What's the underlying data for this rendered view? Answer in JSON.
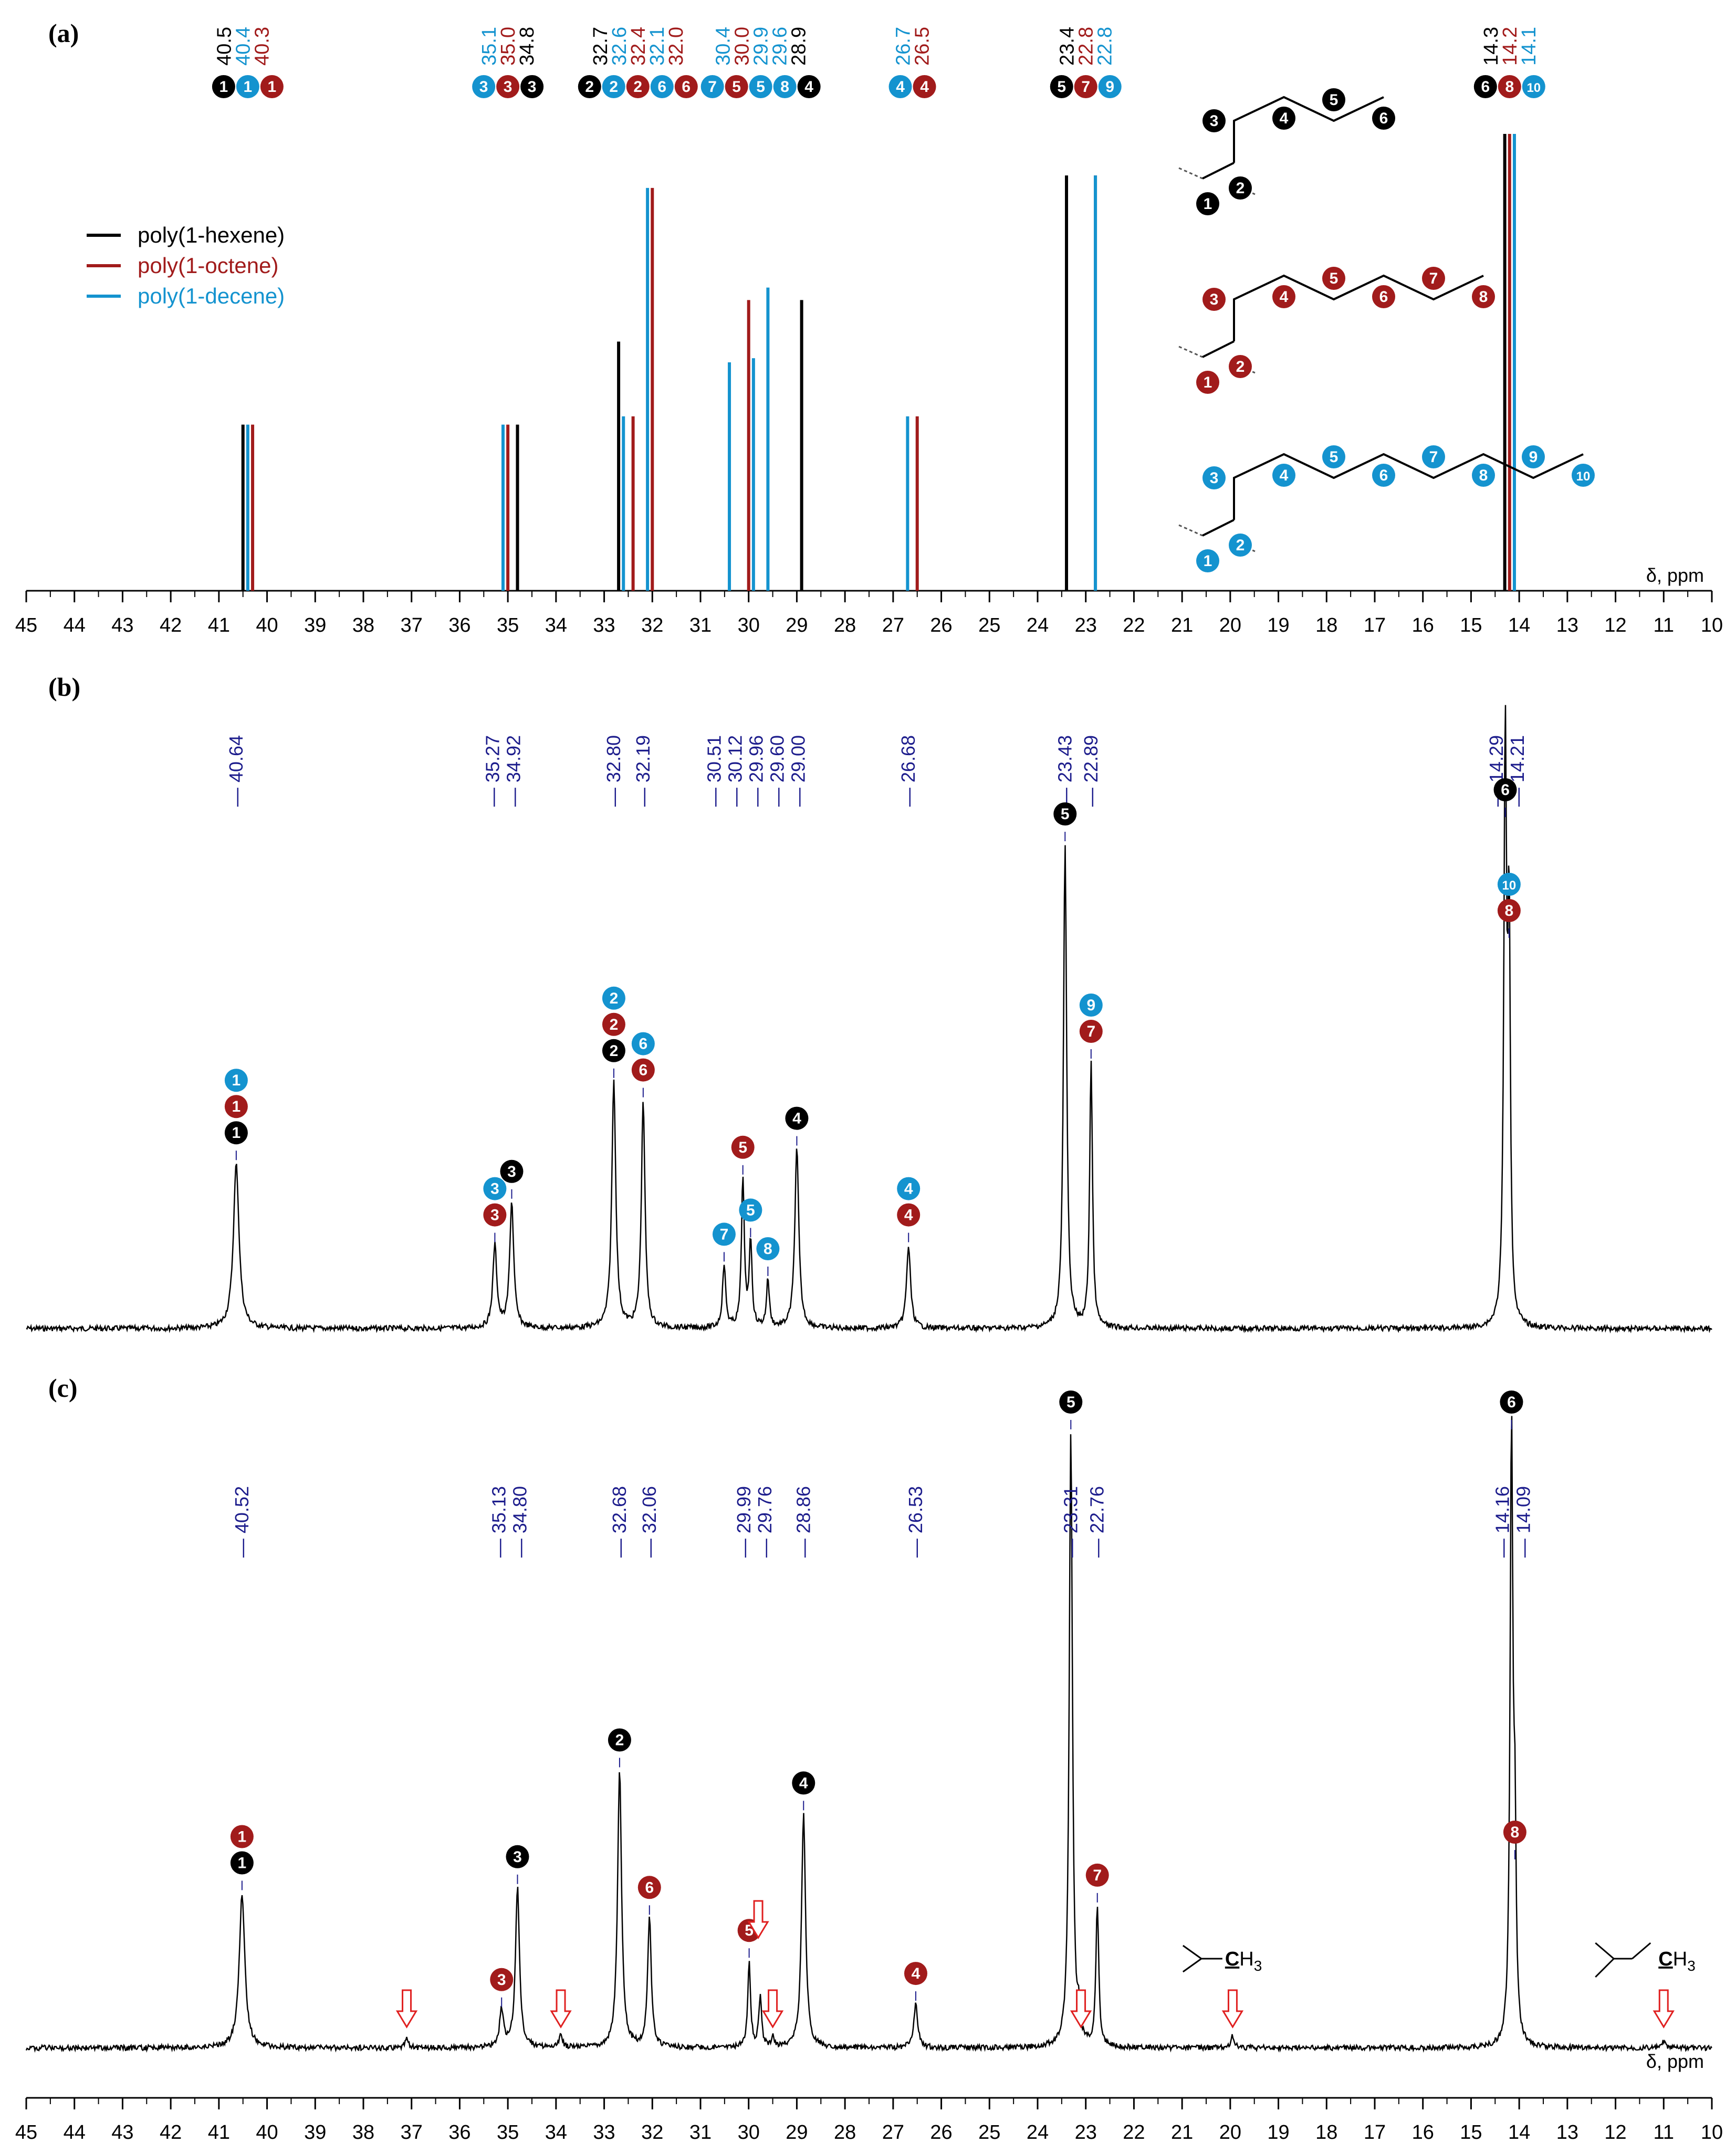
{
  "colors": {
    "hexene": "#000000",
    "octene": "#a11b1b",
    "decene": "#1493cf",
    "peak_label": "#1c1c8c",
    "arrow": "#e02020"
  },
  "axis": {
    "xlim": [
      45,
      10
    ],
    "ticks": [
      45,
      44,
      43,
      42,
      41,
      40,
      39,
      38,
      37,
      36,
      35,
      34,
      33,
      32,
      31,
      30,
      29,
      28,
      27,
      26,
      25,
      24,
      23,
      22,
      21,
      20,
      19,
      18,
      17,
      16,
      15,
      14,
      13,
      12,
      11,
      10
    ],
    "unit_label": "δ, ppm",
    "reversed": true
  },
  "panels": {
    "a": {
      "label": "(a)"
    },
    "b": {
      "label": "(b)"
    },
    "c": {
      "label": "(c)"
    }
  },
  "legend": [
    {
      "name": "poly(1-hexene)",
      "color_key": "hexene"
    },
    {
      "name": "poly(1-octene)",
      "color_key": "octene"
    },
    {
      "name": "poly(1-decene)",
      "color_key": "decene"
    }
  ],
  "chart_data": [
    {
      "type": "bar",
      "panel": "a",
      "xlabel": "δ, ppm",
      "xlim": [
        45,
        10
      ],
      "series": [
        {
          "name": "poly(1-hexene)",
          "color_key": "hexene",
          "x": [
            40.5,
            34.8,
            32.7,
            28.9,
            23.4,
            14.3
          ],
          "y": [
            0.4,
            0.4,
            0.6,
            0.7,
            1.0,
            1.1
          ],
          "carbons": [
            [
              "1"
            ],
            [
              "3"
            ],
            [
              "2"
            ],
            [
              "4"
            ],
            [
              "5"
            ],
            [
              "6"
            ]
          ]
        },
        {
          "name": "poly(1-octene)",
          "color_key": "octene",
          "x": [
            40.3,
            35.0,
            32.4,
            32.0,
            30.0,
            26.5,
            22.8,
            14.2
          ],
          "y": [
            0.4,
            0.4,
            0.42,
            0.97,
            0.7,
            0.42,
            1.0,
            1.1
          ],
          "carbons": [
            [
              "1"
            ],
            [
              "3"
            ],
            [
              "2"
            ],
            [
              "6"
            ],
            [
              "5"
            ],
            [
              "4"
            ],
            [
              "7"
            ],
            [
              "8"
            ]
          ]
        },
        {
          "name": "poly(1-decene)",
          "color_key": "decene",
          "x": [
            40.4,
            35.1,
            32.6,
            32.1,
            30.4,
            29.9,
            29.6,
            26.7,
            22.8,
            14.1
          ],
          "y": [
            0.4,
            0.4,
            0.42,
            0.97,
            0.55,
            0.56,
            0.73,
            0.42,
            1.0,
            1.1
          ],
          "carbons": [
            [
              "1"
            ],
            [
              "3"
            ],
            [
              "2"
            ],
            [
              "6"
            ],
            [
              "7"
            ],
            [
              "5"
            ],
            [
              "8"
            ],
            [
              "4"
            ],
            [
              "9"
            ],
            [
              "10"
            ]
          ]
        }
      ],
      "shift_labels": [
        {
          "x": 40.5,
          "items": [
            {
              "t": "40.5",
              "c": "hexene"
            },
            {
              "t": "40.4",
              "c": "decene"
            },
            {
              "t": "40.3",
              "c": "octene"
            }
          ]
        },
        {
          "x": 35.0,
          "items": [
            {
              "t": "35.1",
              "c": "decene"
            },
            {
              "t": "35.0",
              "c": "octene"
            },
            {
              "t": "34.8",
              "c": "hexene"
            }
          ]
        },
        {
          "x": 32.3,
          "items": [
            {
              "t": "32.7",
              "c": "hexene"
            },
            {
              "t": "32.6",
              "c": "decene"
            },
            {
              "t": "32.4",
              "c": "octene"
            },
            {
              "t": "32.1",
              "c": "decene"
            },
            {
              "t": "32.0",
              "c": "octene"
            }
          ]
        },
        {
          "x": 29.75,
          "items": [
            {
              "t": "30.4",
              "c": "decene"
            },
            {
              "t": "30.0",
              "c": "octene"
            },
            {
              "t": "29.9",
              "c": "decene"
            },
            {
              "t": "29.6",
              "c": "decene"
            },
            {
              "t": "28.9",
              "c": "hexene"
            }
          ]
        },
        {
          "x": 26.6,
          "items": [
            {
              "t": "26.7",
              "c": "decene"
            },
            {
              "t": "26.5",
              "c": "octene"
            }
          ]
        },
        {
          "x": 23.0,
          "items": [
            {
              "t": "23.4",
              "c": "hexene"
            },
            {
              "t": "22.8",
              "c": "octene"
            },
            {
              "t": "22.8",
              "c": "decene"
            }
          ]
        },
        {
          "x": 14.2,
          "items": [
            {
              "t": "14.3",
              "c": "hexene"
            },
            {
              "t": "14.2",
              "c": "octene"
            },
            {
              "t": "14.1",
              "c": "decene"
            }
          ]
        }
      ],
      "marker_groups": [
        {
          "x": 40.4,
          "items": [
            {
              "n": "1",
              "c": "hexene"
            },
            {
              "n": "1",
              "c": "decene"
            },
            {
              "n": "1",
              "c": "octene"
            }
          ]
        },
        {
          "x": 35.0,
          "items": [
            {
              "n": "3",
              "c": "decene"
            },
            {
              "n": "3",
              "c": "octene"
            },
            {
              "n": "3",
              "c": "hexene"
            }
          ]
        },
        {
          "x": 32.3,
          "items": [
            {
              "n": "2",
              "c": "hexene"
            },
            {
              "n": "2",
              "c": "decene"
            },
            {
              "n": "2",
              "c": "octene"
            },
            {
              "n": "6",
              "c": "decene"
            },
            {
              "n": "6",
              "c": "octene"
            }
          ]
        },
        {
          "x": 29.75,
          "items": [
            {
              "n": "7",
              "c": "decene"
            },
            {
              "n": "5",
              "c": "octene"
            },
            {
              "n": "5",
              "c": "decene"
            },
            {
              "n": "8",
              "c": "decene"
            },
            {
              "n": "4",
              "c": "hexene"
            }
          ]
        },
        {
          "x": 26.6,
          "items": [
            {
              "n": "4",
              "c": "decene"
            },
            {
              "n": "4",
              "c": "octene"
            }
          ]
        },
        {
          "x": 23.0,
          "items": [
            {
              "n": "5",
              "c": "hexene"
            },
            {
              "n": "7",
              "c": "octene"
            },
            {
              "n": "9",
              "c": "decene"
            }
          ]
        },
        {
          "x": 14.2,
          "items": [
            {
              "n": "6",
              "c": "hexene"
            },
            {
              "n": "8",
              "c": "octene"
            },
            {
              "n": "10",
              "c": "decene"
            }
          ]
        }
      ],
      "structures": [
        {
          "color_key": "hexene",
          "numbers": [
            "1",
            "2",
            "3",
            "4",
            "5",
            "6"
          ]
        },
        {
          "color_key": "octene",
          "numbers": [
            "1",
            "2",
            "3",
            "4",
            "5",
            "6",
            "7",
            "8"
          ]
        },
        {
          "color_key": "decene",
          "numbers": [
            "1",
            "2",
            "3",
            "4",
            "5",
            "6",
            "7",
            "8",
            "9",
            "10"
          ]
        }
      ]
    },
    {
      "type": "line",
      "panel": "b",
      "xlabel": "",
      "xlim": [
        45,
        10
      ],
      "peak_labels": [
        "40.64",
        "35.27",
        "34.92",
        "32.80",
        "32.19",
        "30.51",
        "30.12",
        "29.96",
        "29.60",
        "29.00",
        "26.68",
        "23.43",
        "22.89",
        "14.29",
        "14.21"
      ],
      "peaks": [
        {
          "x": 40.64,
          "y": 0.34,
          "w": 0.07,
          "labels": [
            {
              "n": "1",
              "c": "decene"
            },
            {
              "n": "1",
              "c": "octene"
            },
            {
              "n": "1",
              "c": "hexene"
            }
          ]
        },
        {
          "x": 35.27,
          "y": 0.17,
          "w": 0.05,
          "labels": [
            {
              "n": "3",
              "c": "decene"
            },
            {
              "n": "3",
              "c": "octene"
            }
          ]
        },
        {
          "x": 34.92,
          "y": 0.26,
          "w": 0.05,
          "labels": [
            {
              "n": "3",
              "c": "hexene"
            }
          ]
        },
        {
          "x": 32.8,
          "y": 0.51,
          "w": 0.05,
          "labels": [
            {
              "n": "2",
              "c": "decene"
            },
            {
              "n": "2",
              "c": "octene"
            },
            {
              "n": "2",
              "c": "hexene"
            }
          ]
        },
        {
          "x": 32.19,
          "y": 0.47,
          "w": 0.045,
          "labels": [
            {
              "n": "6",
              "c": "decene"
            },
            {
              "n": "6",
              "c": "octene"
            }
          ]
        },
        {
          "x": 30.51,
          "y": 0.13,
          "w": 0.04,
          "labels": [
            {
              "n": "7",
              "c": "decene"
            }
          ]
        },
        {
          "x": 30.12,
          "y": 0.31,
          "w": 0.035,
          "labels": [
            {
              "n": "5",
              "c": "octene"
            }
          ]
        },
        {
          "x": 29.96,
          "y": 0.18,
          "w": 0.035,
          "labels": [
            {
              "n": "5",
              "c": "decene"
            }
          ]
        },
        {
          "x": 29.6,
          "y": 0.1,
          "w": 0.035,
          "labels": [
            {
              "n": "8",
              "c": "decene"
            }
          ]
        },
        {
          "x": 29.0,
          "y": 0.37,
          "w": 0.05,
          "labels": [
            {
              "n": "4",
              "c": "hexene"
            }
          ]
        },
        {
          "x": 26.68,
          "y": 0.17,
          "w": 0.05,
          "labels": [
            {
              "n": "4",
              "c": "decene"
            },
            {
              "n": "4",
              "c": "octene"
            }
          ]
        },
        {
          "x": 23.43,
          "y": 1.0,
          "w": 0.04,
          "labels": [
            {
              "n": "5",
              "c": "hexene"
            }
          ]
        },
        {
          "x": 22.89,
          "y": 0.55,
          "w": 0.035,
          "labels": [
            {
              "n": "9",
              "c": "decene"
            },
            {
              "n": "7",
              "c": "octene"
            }
          ]
        },
        {
          "x": 14.29,
          "y": 1.2,
          "w": 0.035,
          "labels": [
            {
              "n": "6",
              "c": "hexene"
            }
          ]
        },
        {
          "x": 14.21,
          "y": 0.8,
          "w": 0.03,
          "labels": [
            {
              "n": "10",
              "c": "decene"
            },
            {
              "n": "8",
              "c": "octene"
            }
          ]
        }
      ]
    },
    {
      "type": "line",
      "panel": "c",
      "xlabel": "δ, ppm",
      "xlim": [
        45,
        10
      ],
      "peak_labels": [
        "40.52",
        "35.13",
        "34.80",
        "32.68",
        "32.06",
        "29.99",
        "29.76",
        "28.86",
        "26.53",
        "23.31",
        "22.76",
        "14.16",
        "14.09"
      ],
      "peaks": [
        {
          "x": 40.52,
          "y": 0.25,
          "w": 0.07,
          "labels": [
            {
              "n": "1",
              "c": "octene"
            },
            {
              "n": "1",
              "c": "hexene"
            }
          ]
        },
        {
          "x": 35.13,
          "y": 0.06,
          "w": 0.05,
          "labels": [
            {
              "n": "3",
              "c": "octene"
            }
          ]
        },
        {
          "x": 34.8,
          "y": 0.26,
          "w": 0.05,
          "labels": [
            {
              "n": "3",
              "c": "hexene"
            }
          ]
        },
        {
          "x": 32.68,
          "y": 0.45,
          "w": 0.05,
          "labels": [
            {
              "n": "2",
              "c": "hexene"
            }
          ]
        },
        {
          "x": 32.06,
          "y": 0.21,
          "w": 0.045,
          "labels": [
            {
              "n": "6",
              "c": "octene"
            }
          ]
        },
        {
          "x": 29.99,
          "y": 0.14,
          "w": 0.035,
          "labels": [
            {
              "n": "5",
              "c": "octene"
            }
          ]
        },
        {
          "x": 29.76,
          "y": 0.08,
          "w": 0.035,
          "labels": []
        },
        {
          "x": 28.86,
          "y": 0.38,
          "w": 0.05,
          "labels": [
            {
              "n": "4",
              "c": "hexene"
            }
          ]
        },
        {
          "x": 26.53,
          "y": 0.07,
          "w": 0.05,
          "labels": [
            {
              "n": "4",
              "c": "octene"
            }
          ]
        },
        {
          "x": 23.31,
          "y": 1.0,
          "w": 0.04,
          "labels": [
            {
              "n": "5",
              "c": "hexene"
            }
          ]
        },
        {
          "x": 22.76,
          "y": 0.23,
          "w": 0.035,
          "labels": [
            {
              "n": "7",
              "c": "octene"
            }
          ]
        },
        {
          "x": 14.16,
          "y": 1.0,
          "w": 0.035,
          "labels": [
            {
              "n": "6",
              "c": "hexene"
            }
          ]
        },
        {
          "x": 14.09,
          "y": 0.3,
          "w": 0.03,
          "labels": [
            {
              "n": "8",
              "c": "octene"
            }
          ]
        },
        {
          "x": 37.1,
          "y": 0.015,
          "w": 0.04,
          "labels": []
        },
        {
          "x": 33.9,
          "y": 0.02,
          "w": 0.04,
          "labels": []
        },
        {
          "x": 29.5,
          "y": 0.02,
          "w": 0.03,
          "labels": []
        },
        {
          "x": 23.15,
          "y": 0.04,
          "w": 0.03,
          "labels": []
        },
        {
          "x": 19.95,
          "y": 0.02,
          "w": 0.04,
          "labels": []
        },
        {
          "x": 11.0,
          "y": 0.01,
          "w": 0.04,
          "labels": []
        }
      ],
      "impurity_arrows": [
        37.1,
        33.9,
        29.8,
        29.5,
        23.1,
        19.95,
        11.0
      ],
      "annotations": [
        {
          "x": 20.0,
          "prefix": "",
          "bold": "C",
          "suffix": "H",
          "sub": "3"
        },
        {
          "x": 11.0,
          "prefix": "",
          "bold": "C",
          "suffix": "H",
          "sub": "3"
        }
      ]
    }
  ]
}
